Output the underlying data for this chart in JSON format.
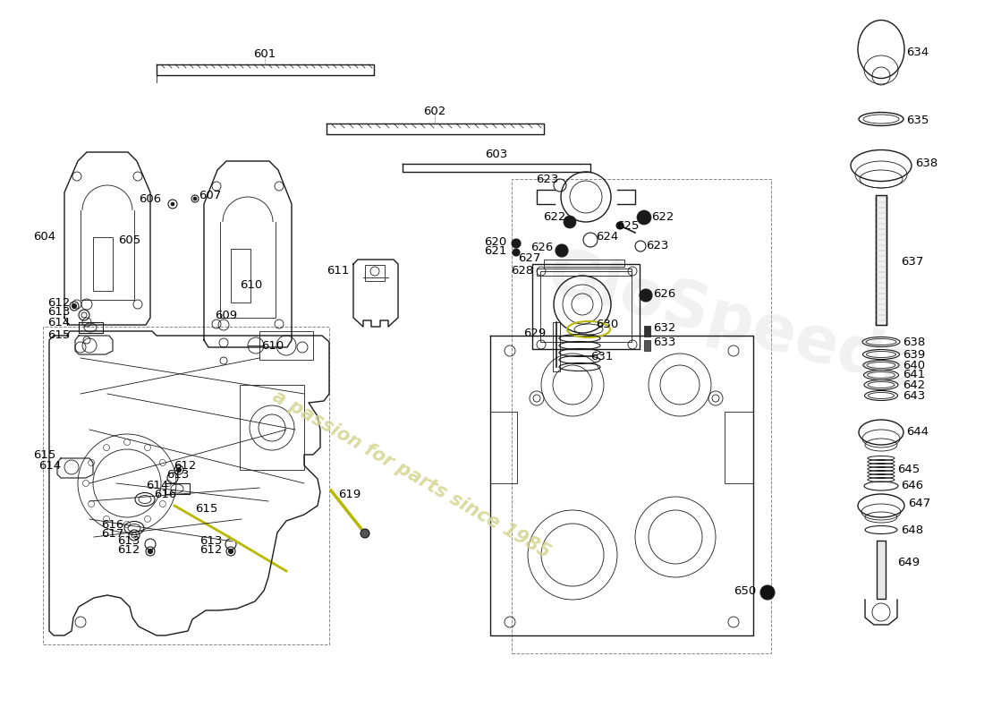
{
  "bg_color": "#ffffff",
  "line_color": "#1a1a1a",
  "watermark_text": "a passion for parts since 1985",
  "watermark_color": "#d4d490",
  "label_fontsize": 9.5,
  "label_color": "#000000",
  "fig_w": 11.0,
  "fig_h": 8.0,
  "dpi": 100
}
